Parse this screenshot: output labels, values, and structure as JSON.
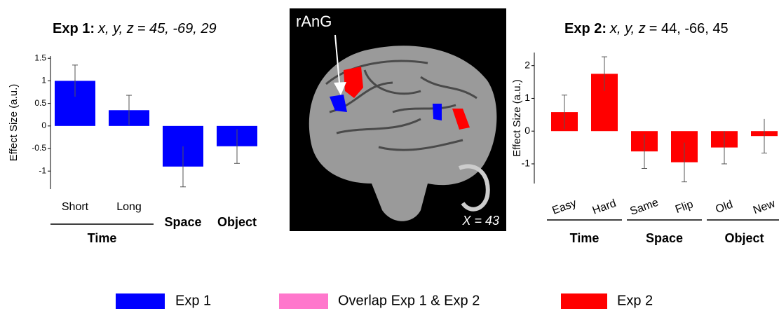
{
  "chart_data": [
    {
      "type": "bar",
      "title": "Exp 1:",
      "coords_label": "x, y, z",
      "coords": "= 45, -69, 29",
      "coords_italic": true,
      "ylabel": "Effect Size (a.u.)",
      "color": "#0000ff",
      "ylim": [
        -1.4,
        1.55
      ],
      "yticks": [
        1.5,
        1,
        0.5,
        0,
        -0.5,
        -1
      ],
      "groups": [
        {
          "name": "Time",
          "categories": [
            "Short",
            "Long"
          ],
          "values": [
            1.0,
            0.35
          ],
          "errors": [
            0.35,
            0.33
          ]
        },
        {
          "name": "Space",
          "categories": [
            null
          ],
          "values": [
            -0.9
          ],
          "errors": [
            0.45
          ]
        },
        {
          "name": "Object",
          "categories": [
            null
          ],
          "values": [
            -0.45
          ],
          "errors": [
            0.38
          ]
        }
      ]
    },
    {
      "type": "bar",
      "title": "Exp 2:",
      "coords_label": "x, y, z",
      "coords": "= 44, -66, 45",
      "coords_italic": false,
      "ylabel": "Effect Size (a.u.)",
      "color": "#ff0000",
      "ylim": [
        -1.6,
        2.4
      ],
      "yticks": [
        2,
        1,
        0,
        -1
      ],
      "groups": [
        {
          "name": "Time",
          "categories": [
            "Easy",
            "Hard"
          ],
          "values": [
            0.58,
            1.75
          ],
          "errors": [
            0.52,
            0.52
          ]
        },
        {
          "name": "Space",
          "categories": [
            "Same",
            "Flip"
          ],
          "values": [
            -0.62,
            -0.95
          ],
          "errors": [
            0.52,
            0.6
          ]
        },
        {
          "name": "Object",
          "categories": [
            "Old",
            "New"
          ],
          "values": [
            -0.5,
            -0.15
          ],
          "errors": [
            0.5,
            0.52
          ]
        }
      ]
    }
  ],
  "image": {
    "region_label": "rAnG",
    "slice_label": "X = 43"
  },
  "legend": [
    {
      "label": "Exp 1",
      "color": "#0000ff"
    },
    {
      "label": "Overlap Exp 1 & Exp 2",
      "color": "#ff77cc"
    },
    {
      "label": "Exp 2",
      "color": "#ff0000"
    }
  ]
}
